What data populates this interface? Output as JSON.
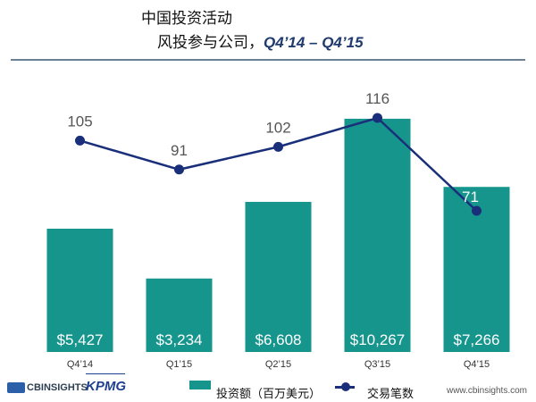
{
  "header": {
    "title": "中国投资活动",
    "subtitle_prefix": "风投参与公司，",
    "subtitle_range": "Q4’14 – Q4’15"
  },
  "legend": {
    "bar_label": "投资额（百万美元）",
    "line_label": "交易笔数"
  },
  "footer": {
    "logo_cb": "CBINSIGHTS",
    "logo_kpmg": "KPMG",
    "website": "www.cbinsights.com"
  },
  "colors": {
    "bar": "#16958d",
    "line": "#1a2f7a",
    "bar_label": "#ffffff",
    "line_label": "#555555"
  },
  "chart_data": {
    "type": "bar",
    "categories": [
      "Q4’14",
      "Q1’15",
      "Q2’15",
      "Q3’15",
      "Q4’15"
    ],
    "series": [
      {
        "name": "投资额（百万美元）",
        "type": "bar",
        "values": [
          5427,
          3234,
          6608,
          10267,
          7266
        ],
        "labels": [
          "$5,427",
          "$3,234",
          "$6,608",
          "$10,267",
          "$7,266"
        ]
      },
      {
        "name": "交易笔数",
        "type": "line",
        "values": [
          105,
          91,
          102,
          116,
          71
        ],
        "labels": [
          "105",
          "91",
          "102",
          "116",
          "71"
        ]
      }
    ],
    "grid": false,
    "legend_position": "bottom"
  }
}
